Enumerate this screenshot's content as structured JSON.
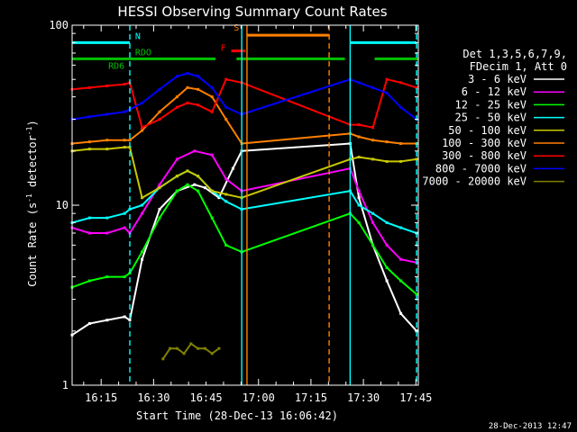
{
  "chart_data": {
    "type": "line",
    "title": "HESSI Observing Summary Count Rates",
    "ylabel_main": "Count Rate (s",
    "ylabel_sup": "-1",
    "ylabel_tail": " detector",
    "ylabel_sup2": "-1",
    "ylabel_close": ")",
    "xlabel": "Start Time (28-Dec-13 16:06:42)",
    "timestamp": "28-Dec-2013 12:47",
    "y_scale": "log",
    "ylim": [
      1,
      100
    ],
    "x_range_minutes": [
      0,
      99
    ],
    "x_ticks": [
      {
        "label": "16:15",
        "min": 8.3
      },
      {
        "label": "16:30",
        "min": 23.3
      },
      {
        "label": "16:45",
        "min": 38.3
      },
      {
        "label": "17:00",
        "min": 53.3
      },
      {
        "label": "17:15",
        "min": 68.3
      },
      {
        "label": "17:30",
        "min": 83.3
      },
      {
        "label": "17:45",
        "min": 98.3
      }
    ],
    "y_ticks": [
      {
        "label": "1",
        "value": 1
      },
      {
        "label": "10",
        "value": 10
      },
      {
        "label": "100",
        "value": 100
      }
    ],
    "legend": {
      "header": [
        "Det 1,3,5,6,7,9,",
        "FDecim 1, Att 0"
      ],
      "placement": "right",
      "entries": [
        {
          "name": "3 - 6 keV",
          "color": "#ffffff"
        },
        {
          "name": "6 - 12 keV",
          "color": "#ff00ff"
        },
        {
          "name": "12 - 25 keV",
          "color": "#00ff00"
        },
        {
          "name": "25 - 50 keV",
          "color": "#00ffff"
        },
        {
          "name": "50 - 100 keV",
          "color": "#c8c800"
        },
        {
          "name": "100 - 300 keV",
          "color": "#ff8000"
        },
        {
          "name": "300 - 800 keV",
          "color": "#ff0000"
        },
        {
          "name": "800 - 7000 keV",
          "color": "#0000ff"
        },
        {
          "name": "7000 - 20000 keV",
          "color": "#808000"
        }
      ]
    },
    "flags": [
      {
        "label": "N",
        "color": "#00ffff",
        "value": 80,
        "segments": [
          [
            0,
            16.5
          ],
          [
            79.5,
            98.5
          ]
        ]
      },
      {
        "label": "RDO",
        "color": "#00c000",
        "value": 65,
        "segments": [
          [
            0,
            41
          ],
          [
            47,
            78
          ],
          [
            86.5,
            99
          ]
        ]
      },
      {
        "label": "RD6",
        "color": "#00c000"
      },
      {
        "label": "S",
        "color": "#ff8000",
        "value": 88,
        "segments": [
          [
            50,
            73.5
          ]
        ]
      },
      {
        "label": "F",
        "color": "#ff0000",
        "value": 72,
        "segments": [
          [
            45.5,
            49.5
          ]
        ]
      }
    ],
    "vlines": [
      {
        "min": 16.5,
        "style": "dashed",
        "color": "#00ffff"
      },
      {
        "min": 48.5,
        "style": "solid",
        "color": "#00ffff"
      },
      {
        "min": 50.0,
        "style": "solid",
        "color": "#ff8000"
      },
      {
        "min": 73.5,
        "style": "dashed",
        "color": "#ff8000"
      },
      {
        "min": 79.5,
        "style": "solid",
        "color": "#00ffff"
      },
      {
        "min": 98.5,
        "style": "dashed",
        "color": "#00ffff"
      }
    ],
    "series": [
      {
        "name": "3 - 6 keV",
        "color": "#ffffff",
        "x": [
          0,
          5,
          10,
          15,
          16.5,
          20,
          25,
          30,
          35,
          38,
          42,
          46,
          48.5,
          79.5,
          82,
          86,
          90,
          94,
          98.5
        ],
        "values": [
          1.9,
          2.2,
          2.3,
          2.4,
          2.3,
          5.0,
          9.5,
          12.0,
          13.0,
          12.5,
          11.0,
          16.0,
          20.0,
          22.0,
          11.0,
          6.0,
          3.8,
          2.5,
          2.0
        ]
      },
      {
        "name": "6 - 12 keV",
        "color": "#ff00ff",
        "x": [
          0,
          5,
          10,
          15,
          16.5,
          20,
          25,
          30,
          35,
          40,
          44,
          48.5,
          79.5,
          82,
          86,
          90,
          94,
          98.5
        ],
        "values": [
          7.5,
          7.0,
          7.0,
          7.5,
          7.0,
          9.0,
          13.0,
          18.0,
          20.0,
          19.0,
          14.0,
          12.0,
          16.0,
          12.0,
          8.0,
          6.0,
          5.0,
          4.8
        ]
      },
      {
        "name": "12 - 25 keV",
        "color": "#00ff00",
        "x": [
          0,
          5,
          10,
          15,
          16.5,
          20,
          25,
          30,
          33,
          36,
          40,
          44,
          48.5,
          79.5,
          82,
          86,
          90,
          94,
          98.5
        ],
        "values": [
          3.5,
          3.8,
          4.0,
          4.0,
          4.2,
          5.5,
          8.5,
          12.0,
          13.0,
          12.0,
          8.5,
          6.0,
          5.5,
          9.0,
          8.0,
          6.0,
          4.5,
          3.8,
          3.2
        ]
      },
      {
        "name": "25 - 50 keV",
        "color": "#00ffff",
        "x": [
          0,
          5,
          10,
          15,
          16.5,
          20,
          25,
          30,
          33,
          36,
          40,
          44,
          48.5,
          79.5,
          82,
          86,
          90,
          94,
          98.5
        ],
        "values": [
          8.0,
          8.5,
          8.5,
          9.0,
          9.5,
          10.0,
          12.5,
          14.5,
          15.5,
          14.5,
          12.0,
          10.5,
          9.5,
          12.0,
          10.0,
          9.0,
          8.0,
          7.5,
          7.0
        ]
      },
      {
        "name": "50 - 100 keV",
        "color": "#c8c800",
        "x": [
          0,
          5,
          10,
          15,
          16.5,
          20,
          25,
          30,
          33,
          36,
          40,
          44,
          48.5,
          79.5,
          82,
          86,
          90,
          94,
          98.5
        ],
        "values": [
          20.0,
          20.5,
          20.5,
          21.0,
          21.0,
          11.0,
          12.5,
          14.5,
          15.5,
          14.5,
          12.0,
          11.5,
          11.0,
          18.0,
          18.5,
          18.0,
          17.5,
          17.5,
          18.0
        ]
      },
      {
        "name": "100 - 300 keV",
        "color": "#ff8000",
        "x": [
          0,
          5,
          10,
          15,
          16.5,
          20,
          25,
          30,
          33,
          36,
          40,
          44,
          48.5,
          79.5,
          82,
          86,
          90,
          94,
          98.5
        ],
        "values": [
          22.0,
          22.5,
          23.0,
          23.0,
          23.0,
          26.0,
          33.0,
          40.0,
          45.0,
          44.0,
          40.0,
          30.0,
          22.0,
          25.0,
          24.0,
          23.0,
          22.5,
          22.0,
          22.0
        ]
      },
      {
        "name": "300 - 800 keV",
        "color": "#ff0000",
        "x": [
          0,
          5,
          10,
          15,
          16.5,
          20,
          25,
          30,
          33,
          36,
          40,
          44,
          48.5,
          79.5,
          82,
          86,
          90,
          94,
          98.5
        ],
        "values": [
          44.0,
          45.0,
          46.0,
          47.0,
          48.0,
          27.0,
          30.0,
          35.0,
          37.0,
          36.0,
          33.0,
          50.0,
          48.0,
          28.0,
          28.0,
          27.0,
          50.0,
          48.0,
          45.0
        ]
      },
      {
        "name": "800 - 7000 keV",
        "color": "#0000ff",
        "x": [
          0,
          5,
          10,
          15,
          16.5,
          20,
          25,
          30,
          33,
          36,
          40,
          44,
          48.5,
          79.5,
          82,
          86,
          90,
          94,
          98.5
        ],
        "values": [
          30.0,
          31.0,
          32.0,
          33.0,
          34.0,
          37.0,
          44.0,
          52.0,
          54.0,
          52.0,
          45.0,
          35.0,
          32.0,
          50.0,
          48.0,
          45.0,
          42.0,
          35.0,
          30.0
        ]
      },
      {
        "name": "7000 - 20000 keV",
        "color": "#808000",
        "x": [
          26,
          28,
          30,
          32,
          34,
          36,
          38,
          40,
          42
        ],
        "values": [
          1.4,
          1.6,
          1.6,
          1.5,
          1.7,
          1.6,
          1.6,
          1.5,
          1.6
        ]
      }
    ]
  }
}
